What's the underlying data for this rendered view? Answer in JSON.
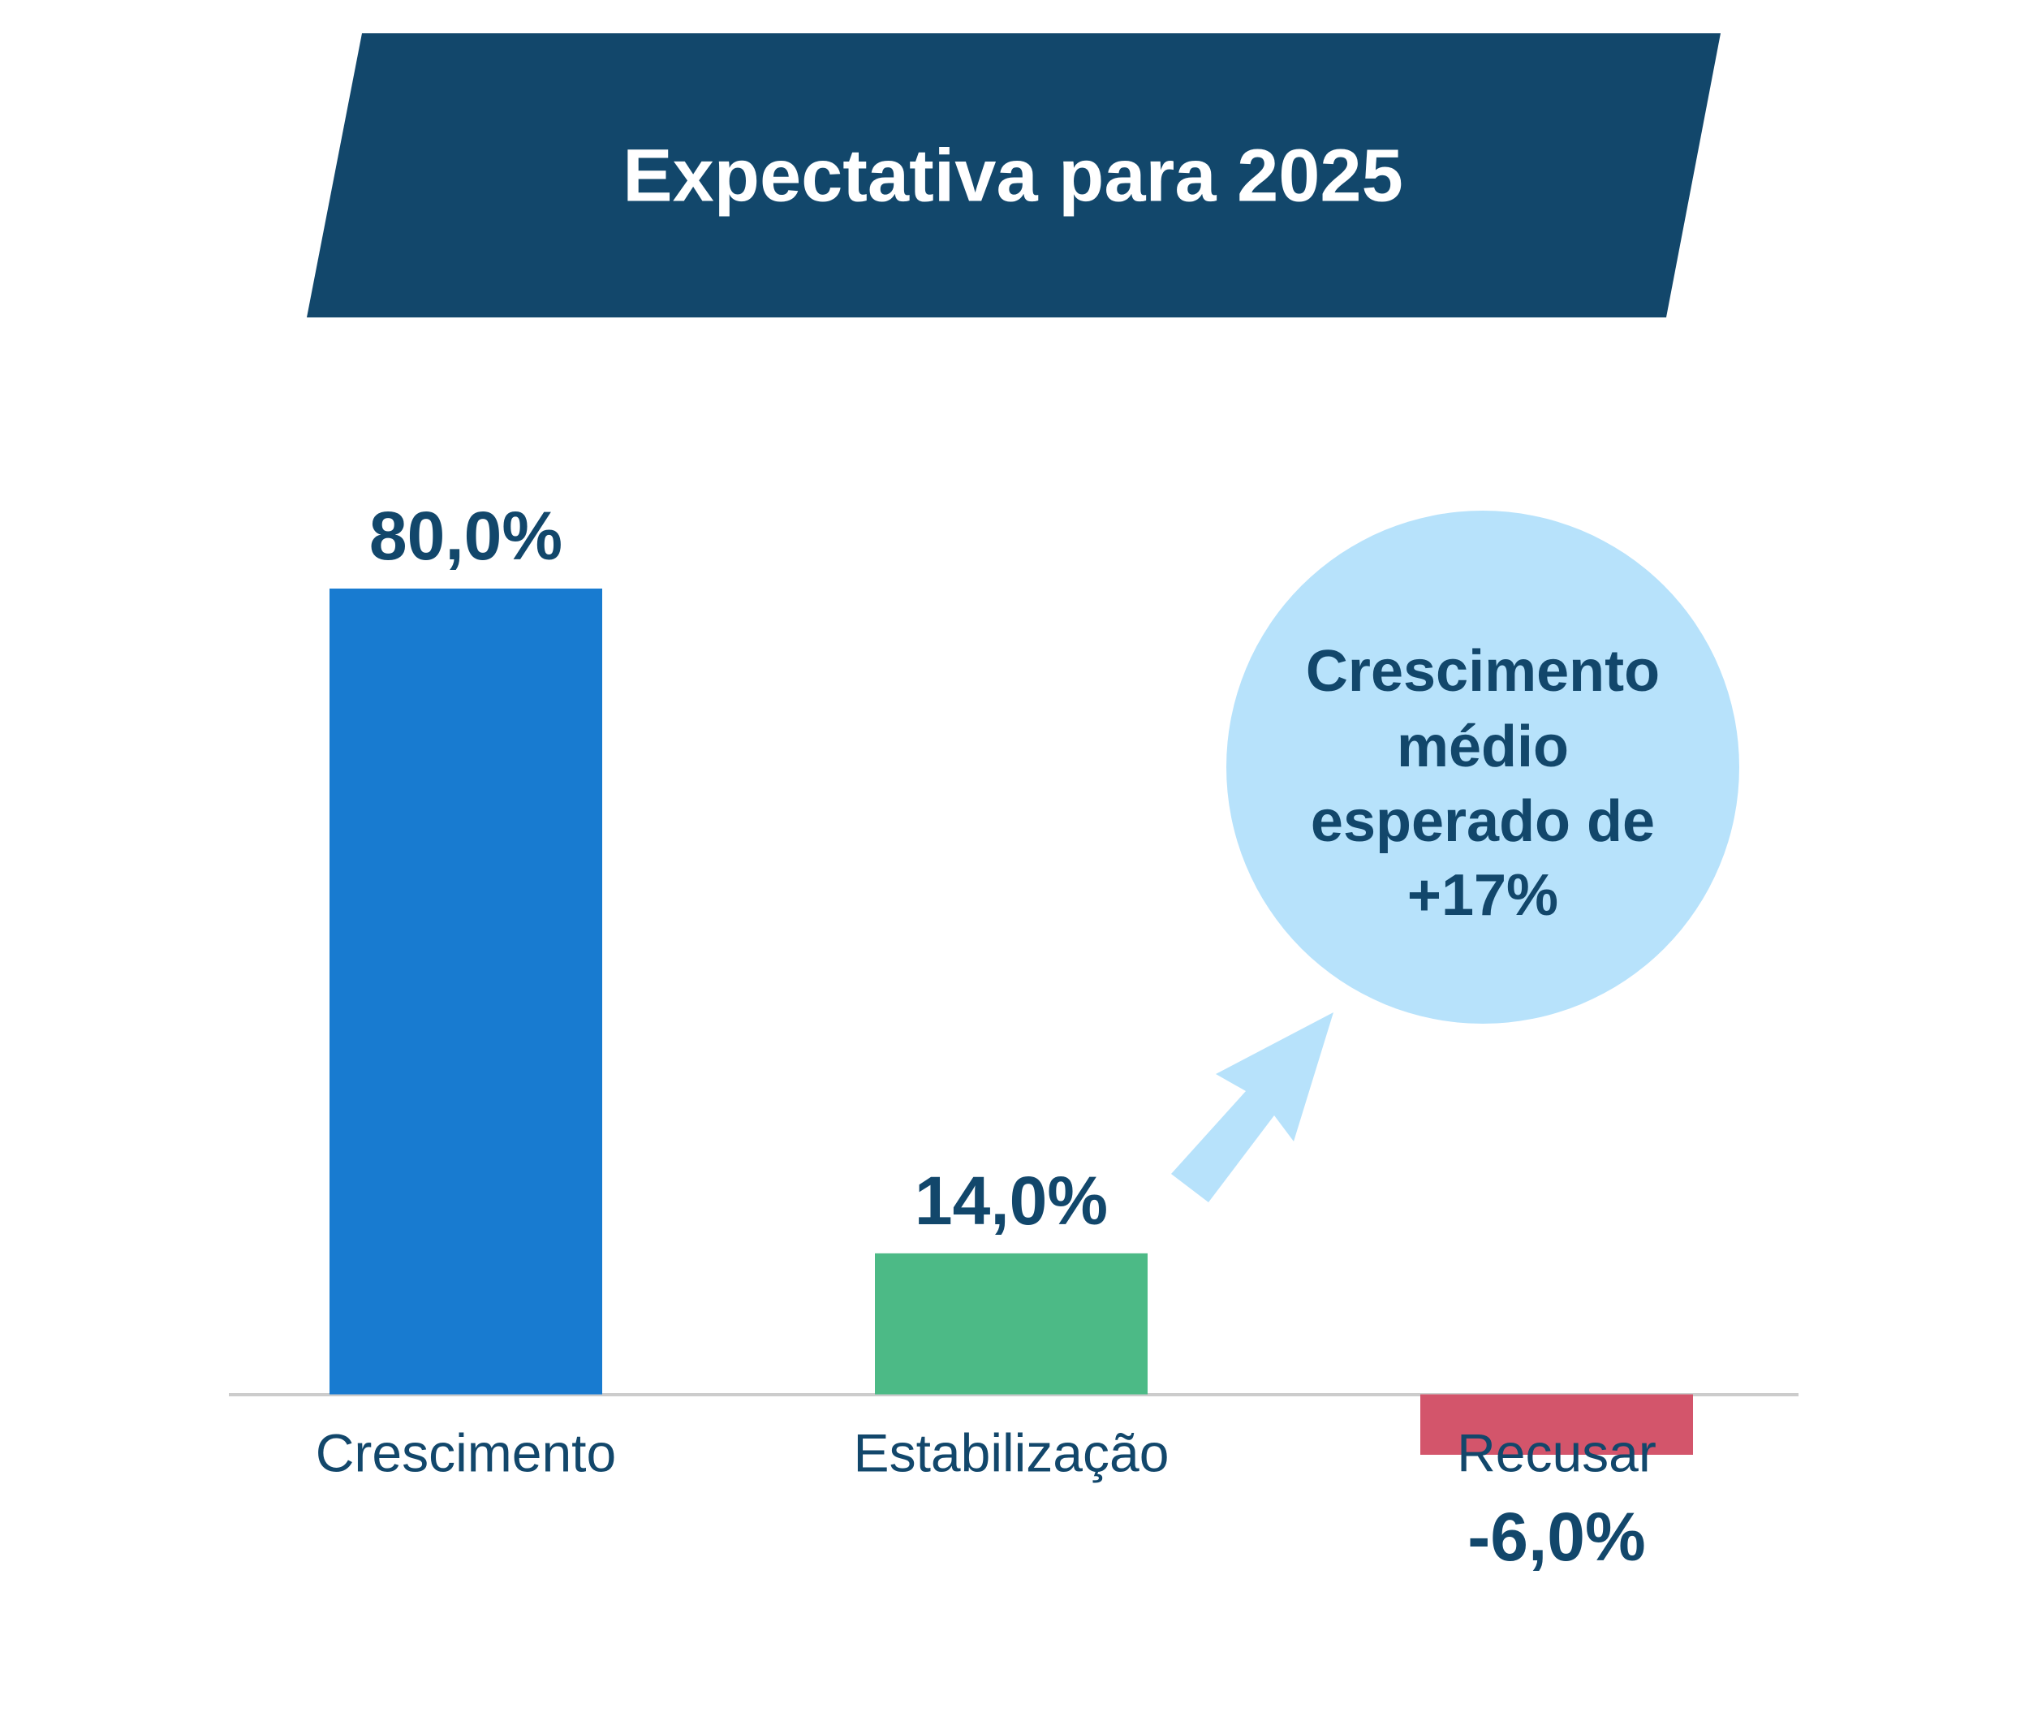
{
  "chart_data": {
    "type": "bar",
    "title": "Expectativa para 2025",
    "categories": [
      "Crescimento",
      "Estabilização",
      "Recusar"
    ],
    "values": [
      80,
      14,
      -6
    ],
    "value_labels": [
      "80,0%",
      "14,0%",
      "-6,0%"
    ],
    "colors": [
      "#187bd0",
      "#4cba86",
      "#d3556b"
    ],
    "ylim": [
      -6,
      80
    ],
    "annotation": [
      "Crescimento",
      "médio",
      "esperado de",
      "+17%"
    ]
  }
}
